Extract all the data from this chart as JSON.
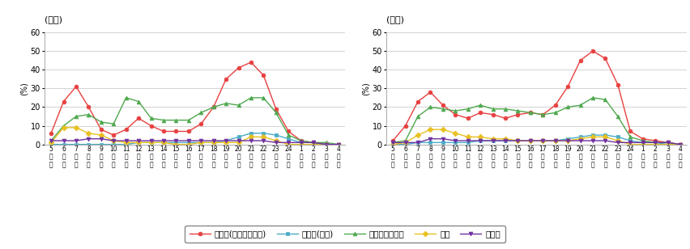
{
  "x_labels_line1": [
    "5",
    "6",
    "7",
    "8",
    "9",
    "10",
    "11",
    "12",
    "13",
    "14",
    "15",
    "16",
    "17",
    "18",
    "19",
    "20",
    "21",
    "22",
    "23",
    "24",
    "1",
    "2",
    "3",
    "4"
  ],
  "x_labels_line2": [
    "時",
    "時",
    "時",
    "時",
    "時",
    "時",
    "時",
    "時",
    "時",
    "時",
    "時",
    "時",
    "時",
    "時",
    "時",
    "時",
    "時",
    "時",
    "時",
    "時",
    "時",
    "時",
    "時",
    "時"
  ],
  "x_labels_line3": [
    "台",
    "台",
    "台",
    "台",
    "台",
    "台",
    "台",
    "台",
    "台",
    "台",
    "台",
    "台",
    "台",
    "台",
    "台",
    "台",
    "台",
    "台",
    "台",
    "台",
    "台",
    "台",
    "台",
    "台"
  ],
  "weekday": {
    "tv_realtime": [
      6,
      23,
      31,
      20,
      8,
      5,
      8,
      14,
      10,
      7,
      7,
      7,
      11,
      20,
      35,
      41,
      44,
      37,
      19,
      7,
      2,
      1,
      0,
      0
    ],
    "tv_rec": [
      0,
      0,
      0,
      0,
      0,
      0,
      0,
      1,
      1,
      1,
      1,
      1,
      1,
      1,
      2,
      4,
      6,
      6,
      5,
      3,
      1,
      1,
      0,
      0
    ],
    "internet": [
      2,
      10,
      15,
      16,
      12,
      11,
      25,
      23,
      14,
      13,
      13,
      13,
      17,
      20,
      22,
      21,
      25,
      25,
      17,
      5,
      2,
      1,
      1,
      0
    ],
    "newspaper": [
      1,
      9,
      9,
      6,
      5,
      2,
      1,
      1,
      1,
      1,
      0,
      0,
      1,
      1,
      1,
      1,
      4,
      4,
      2,
      0,
      0,
      0,
      0,
      0
    ],
    "radio": [
      2,
      2,
      2,
      3,
      3,
      2,
      2,
      2,
      2,
      2,
      2,
      2,
      2,
      2,
      2,
      2,
      2,
      2,
      1,
      1,
      1,
      1,
      0,
      0
    ]
  },
  "holiday": {
    "tv_realtime": [
      2,
      10,
      23,
      28,
      21,
      16,
      14,
      17,
      16,
      14,
      16,
      17,
      16,
      21,
      31,
      45,
      50,
      46,
      32,
      7,
      3,
      2,
      1,
      0
    ],
    "tv_rec": [
      0,
      0,
      1,
      1,
      1,
      1,
      1,
      2,
      2,
      2,
      2,
      2,
      2,
      2,
      3,
      4,
      5,
      5,
      4,
      2,
      1,
      1,
      0,
      0
    ],
    "internet": [
      1,
      2,
      15,
      20,
      19,
      18,
      19,
      21,
      19,
      19,
      18,
      17,
      16,
      17,
      20,
      21,
      25,
      24,
      15,
      4,
      2,
      1,
      1,
      0
    ],
    "newspaper": [
      0,
      1,
      5,
      8,
      8,
      6,
      4,
      4,
      3,
      3,
      2,
      2,
      2,
      2,
      2,
      3,
      4,
      4,
      2,
      0,
      0,
      0,
      0,
      0
    ],
    "radio": [
      1,
      1,
      1,
      3,
      3,
      2,
      2,
      2,
      2,
      2,
      2,
      2,
      2,
      2,
      2,
      2,
      2,
      2,
      1,
      1,
      1,
      1,
      1,
      0
    ]
  },
  "series_colors": {
    "tv_realtime": "#e84040",
    "tv_rec": "#4bacc6",
    "internet": "#4ea84e",
    "newspaper": "#e8c020",
    "radio": "#7030a0"
  },
  "series_markers": {
    "tv_realtime": "o",
    "tv_rec": "s",
    "internet": "^",
    "newspaper": "D",
    "radio": "v"
  },
  "series_labels": {
    "tv_realtime": "テレビ(リアルタイム)",
    "tv_rec": "テレビ(録画)",
    "internet": "インターネット",
    "newspaper": "新聞",
    "radio": "ラジオ"
  },
  "title_weekday": "(平日)",
  "title_holiday": "(休日)",
  "ylabel": "(%)",
  "ylim": [
    0,
    60
  ],
  "yticks": [
    0,
    10,
    20,
    30,
    40,
    50,
    60
  ],
  "background_color": "#ffffff",
  "grid_color": "#cccccc"
}
